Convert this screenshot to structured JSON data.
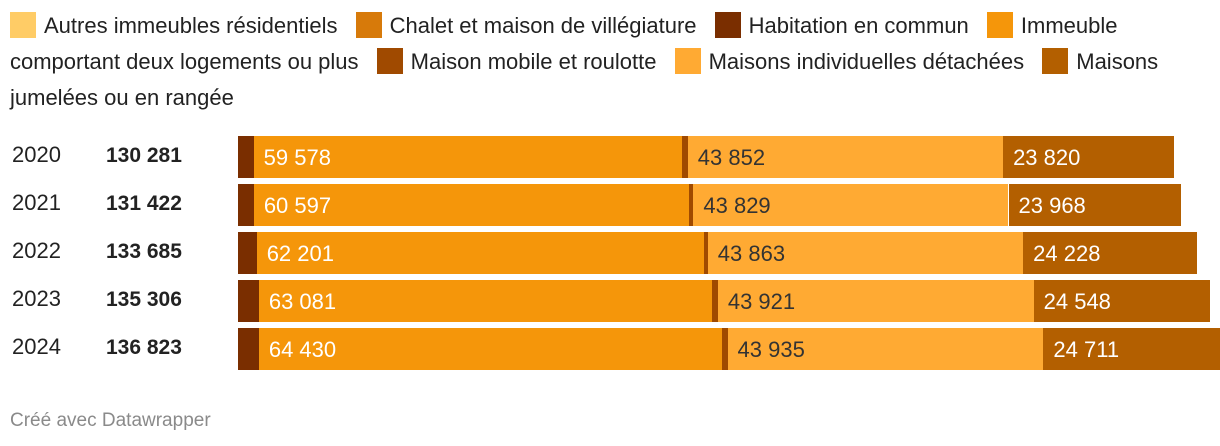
{
  "chart_data": {
    "type": "bar",
    "orientation": "horizontal",
    "stacked": true,
    "legend": [
      {
        "name": "Autres immeubles résidentiels",
        "color": "#ffcc66"
      },
      {
        "name": "Chalet et maison de villégiature",
        "color": "#d77a0a"
      },
      {
        "name": "Habitation en commun",
        "color": "#7a2e00"
      },
      {
        "name": "Immeuble comportant deux logements ou plus",
        "color": "#f5960a"
      },
      {
        "name": "Maison mobile et roulotte",
        "color": "#a04a00"
      },
      {
        "name": "Maisons individuelles détachées",
        "color": "#ffaa33"
      },
      {
        "name": "Maisons jumelées ou en rangée",
        "color": "#b35f00"
      }
    ],
    "categories": [
      "2020",
      "2021",
      "2022",
      "2023",
      "2024"
    ],
    "totals": [
      "130 281",
      "131 422",
      "133 685",
      "135 306",
      "136 823"
    ],
    "series": [
      {
        "name": "Habitation en commun",
        "color": "#7a2e00",
        "values": [
          2180,
          2200,
          2600,
          2900,
          2900
        ],
        "labels": [
          "",
          "",
          "",
          "",
          ""
        ]
      },
      {
        "name": "Immeuble comportant deux logements ou plus",
        "color": "#f5960a",
        "values": [
          59578,
          60597,
          62201,
          63081,
          64430
        ],
        "labels": [
          "59 578",
          "60 597",
          "62 201",
          "63 081",
          "64 430"
        ]
      },
      {
        "name": "Maison mobile et roulotte",
        "color": "#a04a00",
        "values": [
          800,
          540,
          540,
          760,
          760
        ],
        "labels": [
          "",
          "",
          "",
          "",
          ""
        ]
      },
      {
        "name": "Maisons individuelles détachées",
        "color": "#ffaa33",
        "values": [
          43852,
          43829,
          43863,
          43921,
          43935
        ],
        "labels": [
          "43 852",
          "43 829",
          "43 863",
          "43 921",
          "43 935"
        ]
      },
      {
        "name": "Maisons jumelées ou en rangée",
        "color": "#b35f00",
        "values": [
          23820,
          23968,
          24228,
          24548,
          24711
        ],
        "labels": [
          "23 820",
          "23 968",
          "24 228",
          "24 548",
          "24 711"
        ]
      }
    ],
    "xlim": [
      0,
      137000
    ]
  },
  "credit": "Créé avec Datawrapper"
}
